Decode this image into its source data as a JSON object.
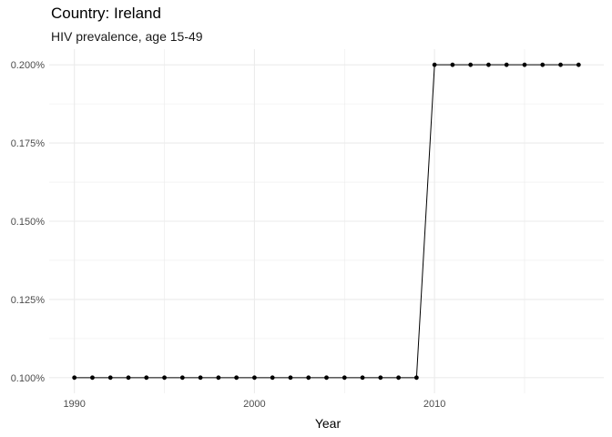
{
  "chart_data": {
    "type": "line",
    "title": "Country: Ireland",
    "subtitle": "HIV prevalence, age 15-49",
    "xlabel": "Year",
    "ylabel": "",
    "x": [
      1990,
      1991,
      1992,
      1993,
      1994,
      1995,
      1996,
      1997,
      1998,
      1999,
      2000,
      2001,
      2002,
      2003,
      2004,
      2005,
      2006,
      2007,
      2008,
      2009,
      2010,
      2011,
      2012,
      2013,
      2014,
      2015,
      2016,
      2017,
      2018
    ],
    "y": [
      0.1,
      0.1,
      0.1,
      0.1,
      0.1,
      0.1,
      0.1,
      0.1,
      0.1,
      0.1,
      0.1,
      0.1,
      0.1,
      0.1,
      0.1,
      0.1,
      0.1,
      0.1,
      0.1,
      0.1,
      0.2,
      0.2,
      0.2,
      0.2,
      0.2,
      0.2,
      0.2,
      0.2,
      0.2
    ],
    "y_unit": "%",
    "xlim": [
      1988.6,
      2019.4
    ],
    "ylim": [
      0.095,
      0.205
    ],
    "x_ticks": [
      1990,
      2000,
      2010
    ],
    "x_tick_labels": [
      "1990",
      "2000",
      "2010"
    ],
    "y_ticks": [
      0.1,
      0.125,
      0.15,
      0.175,
      0.2
    ],
    "y_tick_labels": [
      "0.100%",
      "0.125%",
      "0.150%",
      "0.175%",
      "0.200%"
    ],
    "grid": true,
    "line_color": "#000000",
    "point_color": "#000000",
    "grid_color": "#ebebeb"
  }
}
